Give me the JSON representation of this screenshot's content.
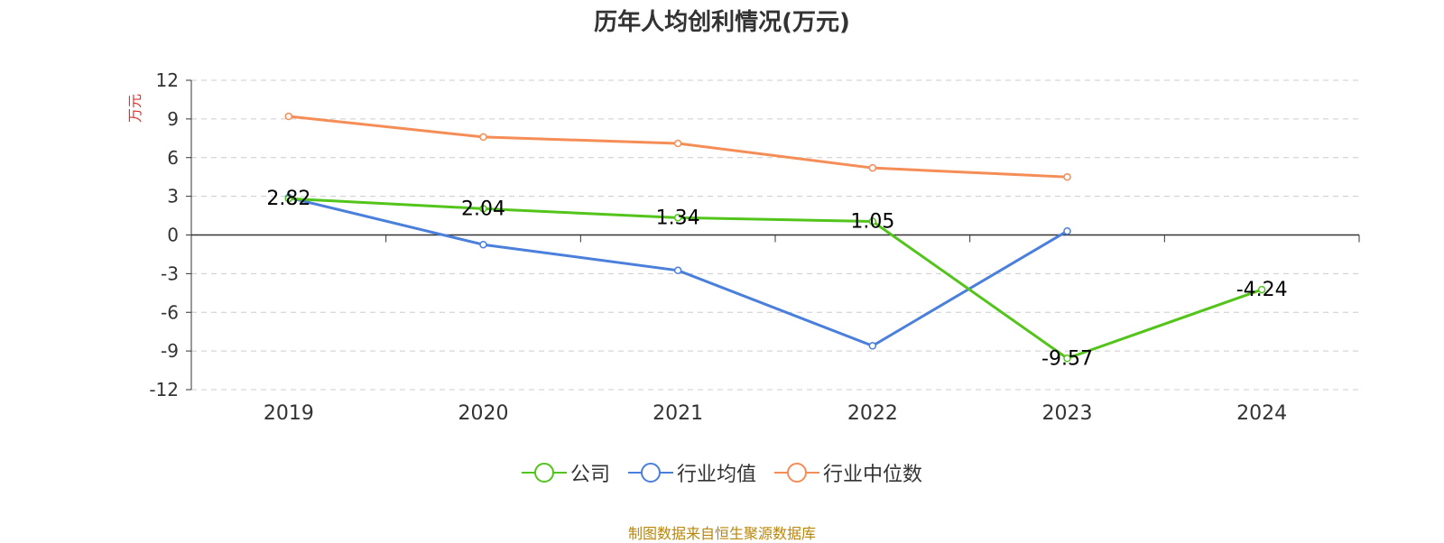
{
  "chart_data": {
    "type": "line",
    "title": "历年人均创利情况(万元)",
    "ylabel": "万元",
    "xlabel": "",
    "categories": [
      "2019",
      "2020",
      "2021",
      "2022",
      "2023",
      "2024"
    ],
    "yticks": [
      "12",
      "9",
      "6",
      "3",
      "0",
      "-3",
      "-6",
      "-9",
      "-12"
    ],
    "ylim": [
      -12,
      12
    ],
    "grid": true,
    "legend_position": "bottom",
    "series": [
      {
        "name": "公司",
        "color": "#52c41a",
        "values": [
          2.82,
          2.04,
          1.34,
          1.05,
          -9.57,
          -4.24
        ],
        "labels": [
          "2.82",
          "2.04",
          "1.34",
          "1.05",
          "-9.57",
          "-4.24"
        ]
      },
      {
        "name": "行业均值",
        "color": "#4a7fdb",
        "values": [
          2.9,
          -0.75,
          -2.75,
          -8.6,
          0.3,
          null
        ]
      },
      {
        "name": "行业中位数",
        "color": "#f58d57",
        "values": [
          9.2,
          7.6,
          7.1,
          5.2,
          4.5,
          null
        ]
      }
    ]
  },
  "source_text": "制图数据来自恒生聚源数据库"
}
